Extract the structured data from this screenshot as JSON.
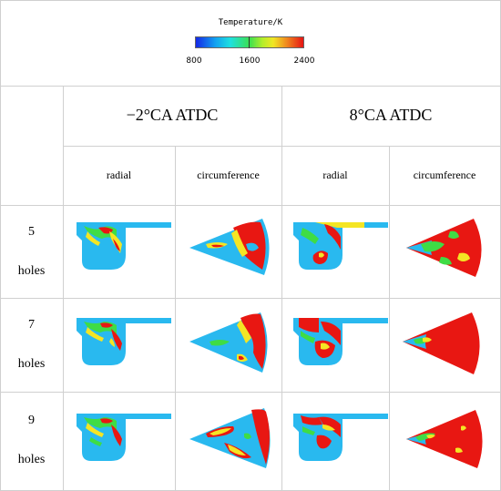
{
  "legend": {
    "title": "Temperature/K",
    "ticks": [
      "800",
      "1600",
      "2400"
    ]
  },
  "columns": {
    "group1": "−2°CA ATDC",
    "group2": "8°CA ATDC",
    "radial_1": "radial",
    "circ_1": "circumference",
    "radial_2": "radial",
    "circ_2": "circumference"
  },
  "rows": [
    {
      "number": "5",
      "unit": "holes"
    },
    {
      "number": "7",
      "unit": "holes"
    },
    {
      "number": "9",
      "unit": "holes"
    }
  ],
  "colors": {
    "cool": "#29b9ef",
    "mid": "#3fdc45",
    "warm": "#f4e524",
    "hot": "#e81712"
  }
}
